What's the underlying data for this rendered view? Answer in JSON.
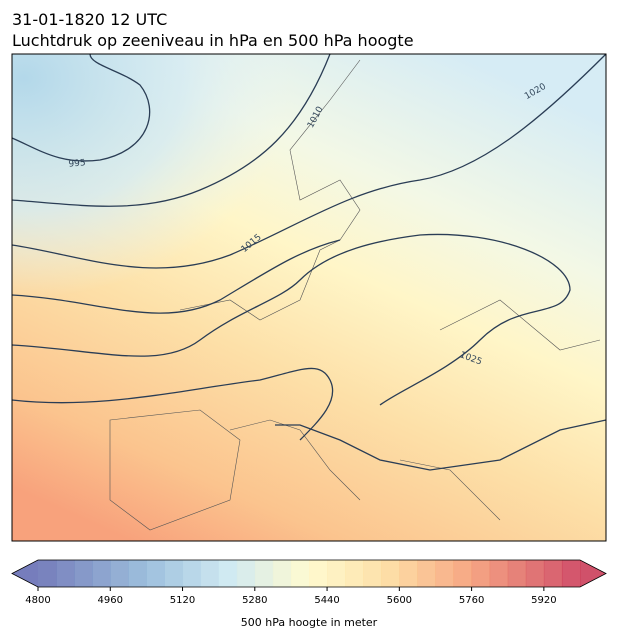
{
  "header": {
    "title": "31-01-1820 12 UTC",
    "subtitle": "Luchtdruk op zeeniveau in hPa en 500 hPa hoogte"
  },
  "map": {
    "contour_labels": [
      995,
      1010,
      1015,
      1020,
      1025
    ]
  },
  "colorbar": {
    "label": "500 hPa hoogte in meter",
    "lim": [
      4800,
      6000
    ],
    "ticks": [
      4800,
      4960,
      5120,
      5280,
      5440,
      5600,
      5760,
      5920
    ]
  }
}
